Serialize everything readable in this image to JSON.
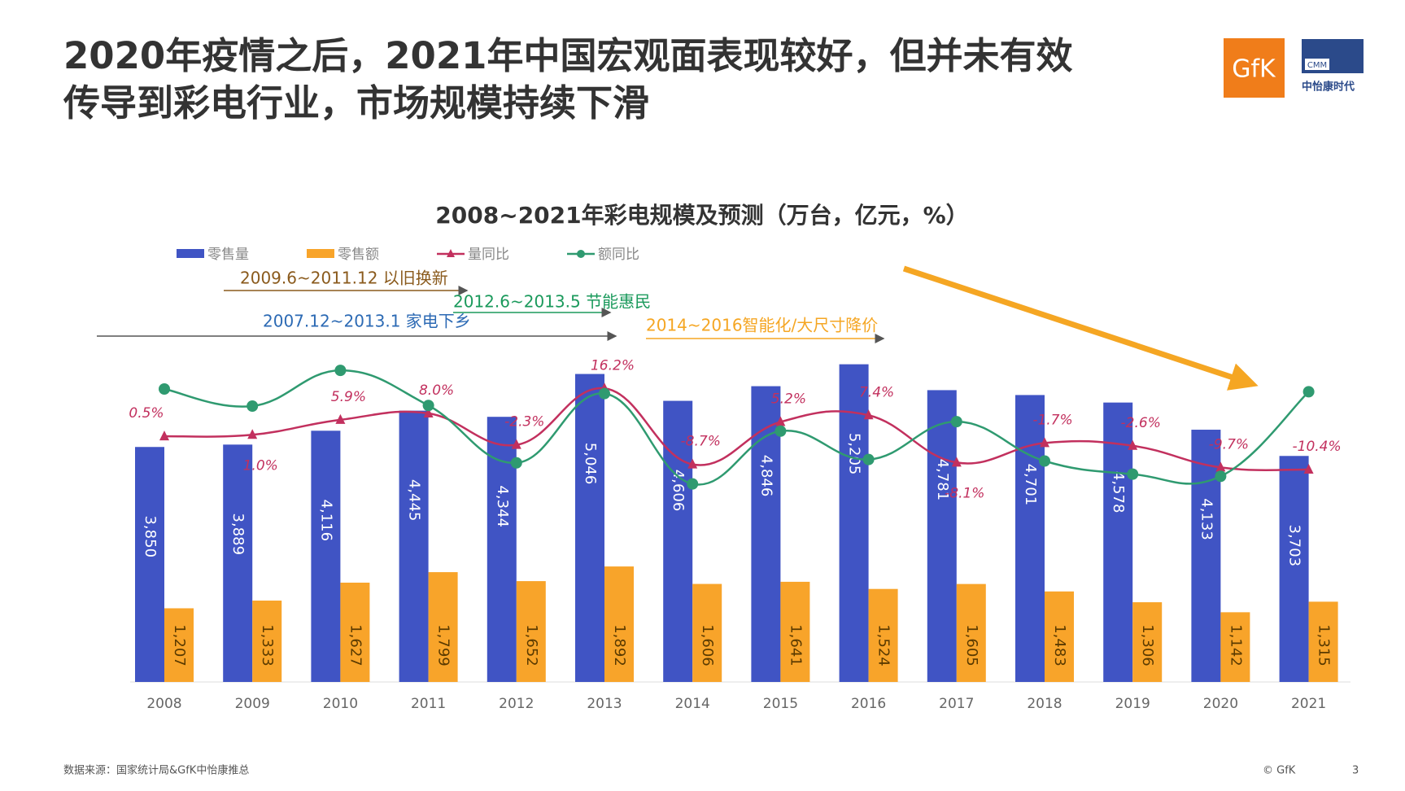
{
  "header": {
    "title_lines": [
      "2020年疫情之后，2021年中国宏观面表现较好，但并未有效",
      "传导到彩电行业，市场规模持续下滑"
    ]
  },
  "logos": {
    "gfk": "GfK",
    "cmm": "CMM",
    "cmm_name": "中怡康时代"
  },
  "chart_data": {
    "type": "bar-line",
    "title": "2008~2021年彩电规模及预测（万台，亿元，%）",
    "categories": [
      "2008",
      "2009",
      "2010",
      "2011",
      "2012",
      "2013",
      "2014",
      "2015",
      "2016",
      "2017",
      "2018",
      "2019",
      "2020",
      "2021"
    ],
    "series": [
      {
        "name": "零售量",
        "type": "bar",
        "color": "#4054c4",
        "values": [
          3850,
          3889,
          4116,
          4445,
          4344,
          5046,
          4606,
          4846,
          5205,
          4781,
          4701,
          4578,
          4133,
          3703
        ],
        "value_labels": [
          "3,850",
          "3,889",
          "4,116",
          "4,445",
          "4,344",
          "5,046",
          "4,606",
          "4,846",
          "5,205",
          "4,781",
          "4,701",
          "4,578",
          "4,133",
          "3,703"
        ]
      },
      {
        "name": "零售额",
        "type": "bar",
        "color": "#f8a42a",
        "values": [
          1207,
          1333,
          1627,
          1799,
          1652,
          1892,
          1606,
          1641,
          1524,
          1605,
          1483,
          1306,
          1142,
          1315
        ],
        "value_labels": [
          "1,207",
          "1,333",
          "1,627",
          "1,799",
          "1,652",
          "1,892",
          "1,606",
          "1,641",
          "1,524",
          "1,605",
          "1,483",
          "1,306",
          "1,142",
          "1,315"
        ]
      },
      {
        "name": "量同比",
        "type": "line",
        "axis": "y2",
        "marker": "triangle",
        "color": "#c2305e",
        "values": [
          0.5,
          1.0,
          5.9,
          8.0,
          -2.3,
          16.2,
          -8.7,
          5.2,
          7.4,
          -8.1,
          -1.7,
          -2.6,
          -9.7,
          -10.4
        ],
        "value_labels": [
          "0.5%",
          "1.0%",
          "5.9%",
          "8.0%",
          "-2.3%",
          "16.2%",
          "-8.7%",
          "5.2%",
          "7.4%",
          "-8.1%",
          "-1.7%",
          "-2.6%",
          "-9.7%",
          "-10.4%"
        ]
      },
      {
        "name": "额同比",
        "type": "line",
        "axis": "y2",
        "marker": "circle",
        "color": "#2f9a70",
        "values": [
          16,
          10.4,
          22.1,
          10.6,
          -8.2,
          14.5,
          -15.1,
          2.2,
          -7.1,
          5.3,
          -7.6,
          -11.9,
          -12.6,
          15.1
        ]
      }
    ],
    "ylim": [
      0,
      6000
    ],
    "y2lim": [
      -80,
      40
    ],
    "annotations": [
      {
        "text": "2009.6~2011.12 以旧换新",
        "color": "#8a5a1c"
      },
      {
        "text": "2012.6~2013.5 节能惠民",
        "color": "#1b9a5c"
      },
      {
        "text": "2007.12~2013.1 家电下乡",
        "color": "#2c6ab4"
      },
      {
        "text": "2014~2016智能化/大尺寸降价",
        "color": "#f5a623"
      }
    ]
  },
  "footer": {
    "source": "数据来源：国家统计局&GfK中怡康推总",
    "copyright": "© GfK",
    "page": "3"
  }
}
